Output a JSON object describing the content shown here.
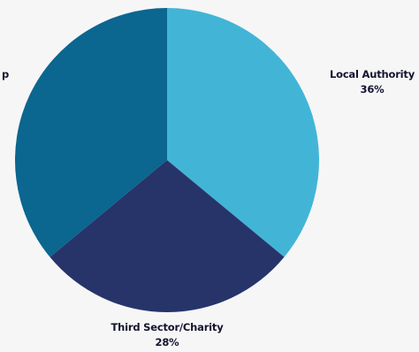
{
  "chart_data": {
    "type": "pie",
    "title": "",
    "slices": [
      {
        "label": "Local Authority",
        "value": 36,
        "value_label": "36%",
        "color": "#42b5d6"
      },
      {
        "label": "Third Sector/Charity",
        "value": 28,
        "value_label": "28%",
        "color": "#27346a"
      },
      {
        "label": "p",
        "value": 36,
        "value_label": "",
        "color": "#0b6690"
      }
    ]
  }
}
